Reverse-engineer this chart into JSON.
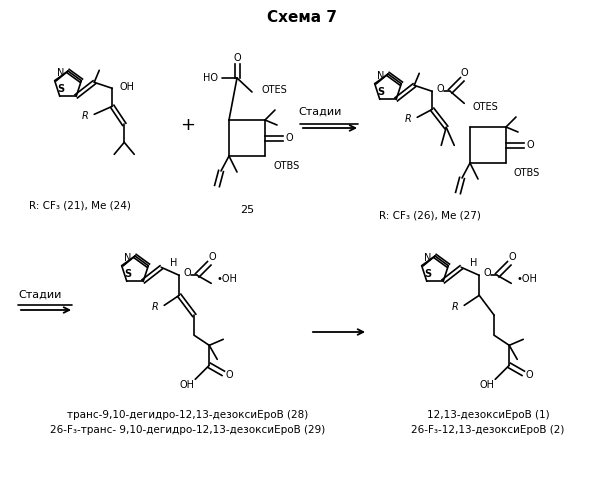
{
  "title": "Схема 7",
  "title_fontsize": 11,
  "title_fontweight": "bold",
  "bg_color": "#ffffff",
  "fig_width": 6.04,
  "fig_height": 5.0,
  "dpi": 100,
  "bottom_text_left_line1": "транс-9,10-дегидро-12,13-дезоксиЕроВ (28)",
  "bottom_text_left_line2": "26-F₃-транс- 9,10-дегидро-12,13-дезоксиЕроВ (29)",
  "bottom_text_right_line1": "12,13-дезоксиЕроВ (1)",
  "bottom_text_right_line2": "26-F₃-12,13-дезоксиЕроВ (2)",
  "label_stadii_top": "Стадии",
  "label_stadii_bottom": "Стадии"
}
